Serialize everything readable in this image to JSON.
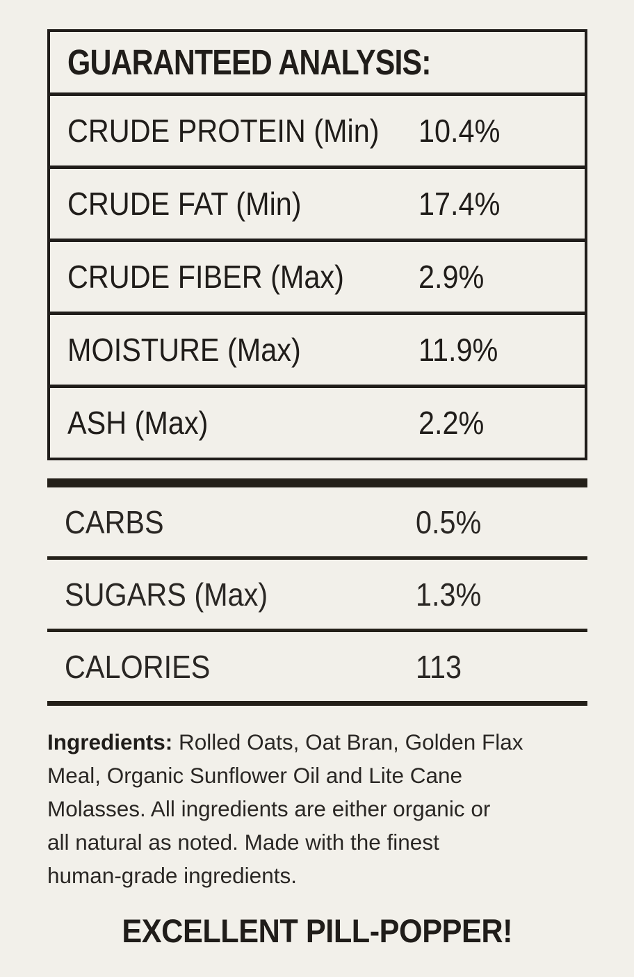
{
  "colors": {
    "background": "#f2f0ea",
    "ink": "#201d1a",
    "bar": "#242019"
  },
  "guaranteed_analysis": {
    "title": "GUARANTEED ANALYSIS:",
    "rows": [
      {
        "label": "CRUDE PROTEIN (Min)",
        "value": "10.4%"
      },
      {
        "label": "CRUDE FAT (Min)",
        "value": "17.4%"
      },
      {
        "label": "CRUDE FIBER (Max)",
        "value": "2.9%"
      },
      {
        "label": "MOISTURE (Max)",
        "value": "11.9%"
      },
      {
        "label": "ASH (Max)",
        "value": "2.2%"
      }
    ]
  },
  "supplemental_rows": [
    {
      "label": "CARBS",
      "value": "0.5%"
    },
    {
      "label": "SUGARS (Max)",
      "value": "1.3%"
    },
    {
      "label": "CALORIES",
      "value": "113"
    }
  ],
  "ingredients": {
    "label": "Ingredients:",
    "line1_rest": " Rolled Oats, Oat Bran, Golden Flax",
    "line2": "Meal, Organic Sunflower Oil and Lite Cane",
    "line3": "Molasses. All ingredients are either organic or",
    "line4": "all natural as noted. Made with the finest",
    "line5": "human-grade ingredients."
  },
  "footer": {
    "text": "EXCELLENT PILL-POPPER!"
  }
}
